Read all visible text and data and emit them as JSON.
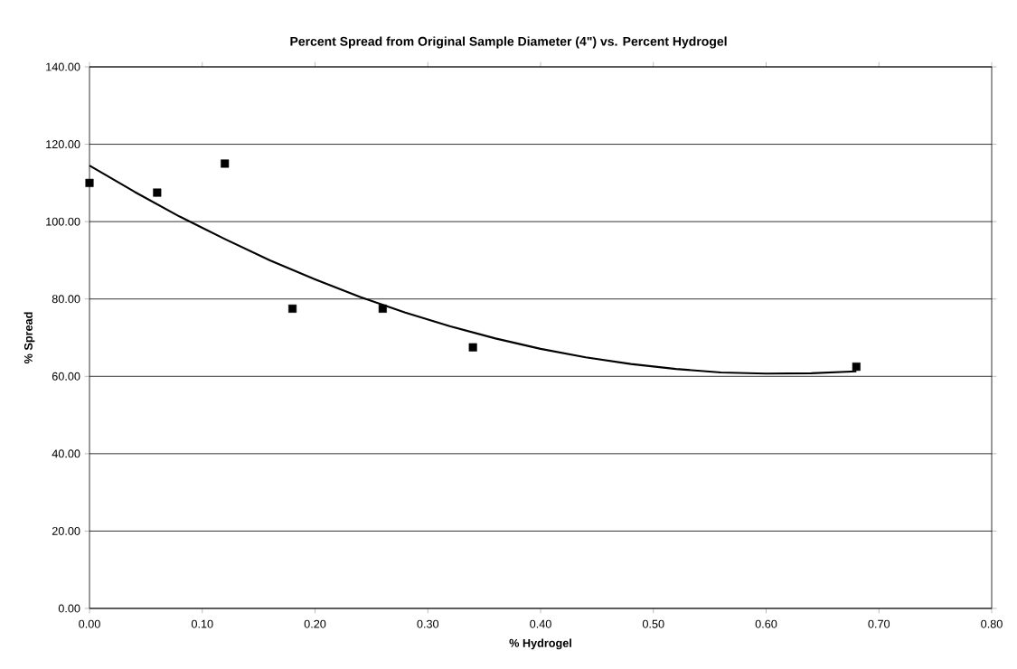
{
  "chart_data": {
    "type": "scatter",
    "title": "Percent Spread from Original Sample Diameter (4\") vs. Percent Hydrogel",
    "xlabel": "% Hydrogel",
    "ylabel": "% Spread",
    "series": [
      {
        "type": "scatter",
        "color": "#000000",
        "marker": "square",
        "x": [
          0,
          0.06,
          0.12,
          0.18,
          0.26,
          0.34,
          0.68
        ],
        "values": [
          110,
          107.5,
          115,
          77.5,
          77.5,
          67.5,
          62.5
        ]
      },
      {
        "type": "line",
        "color": "#000000",
        "marker": "none",
        "line_style": "solid",
        "x": [
          0,
          0.04,
          0.08,
          0.12,
          0.16,
          0.2,
          0.24,
          0.28,
          0.32,
          0.36,
          0.4,
          0.44,
          0.48,
          0.52,
          0.56,
          0.6,
          0.64,
          0.68
        ],
        "values": [
          114.5,
          107.7,
          101.3,
          95.5,
          90.0,
          85.1,
          80.5,
          76.5,
          72.9,
          69.8,
          67.1,
          64.9,
          63.2,
          61.9,
          61.0,
          60.7,
          60.8,
          61.3
        ]
      }
    ],
    "xlim": [
      0,
      0.8
    ],
    "ylim": [
      0,
      140
    ],
    "xticks": [
      {
        "value": 0,
        "label": "0.00"
      },
      {
        "value": 0.1,
        "label": "0.10"
      },
      {
        "value": 0.2,
        "label": "0.20"
      },
      {
        "value": 0.3,
        "label": "0.30"
      },
      {
        "value": 0.4,
        "label": "0.40"
      },
      {
        "value": 0.5,
        "label": "0.50"
      },
      {
        "value": 0.6,
        "label": "0.60"
      },
      {
        "value": 0.7,
        "label": "0.70"
      },
      {
        "value": 0.8,
        "label": "0.80"
      }
    ],
    "yticks": [
      {
        "value": 0,
        "label": "0.00"
      },
      {
        "value": 20,
        "label": "20.00"
      },
      {
        "value": 40,
        "label": "40.00"
      },
      {
        "value": 60,
        "label": "60.00"
      },
      {
        "value": 80,
        "label": "80.00"
      },
      {
        "value": 100,
        "label": "100.00"
      },
      {
        "value": 120,
        "label": "120.00"
      },
      {
        "value": 140,
        "label": "140.00"
      }
    ],
    "grid": "y"
  }
}
